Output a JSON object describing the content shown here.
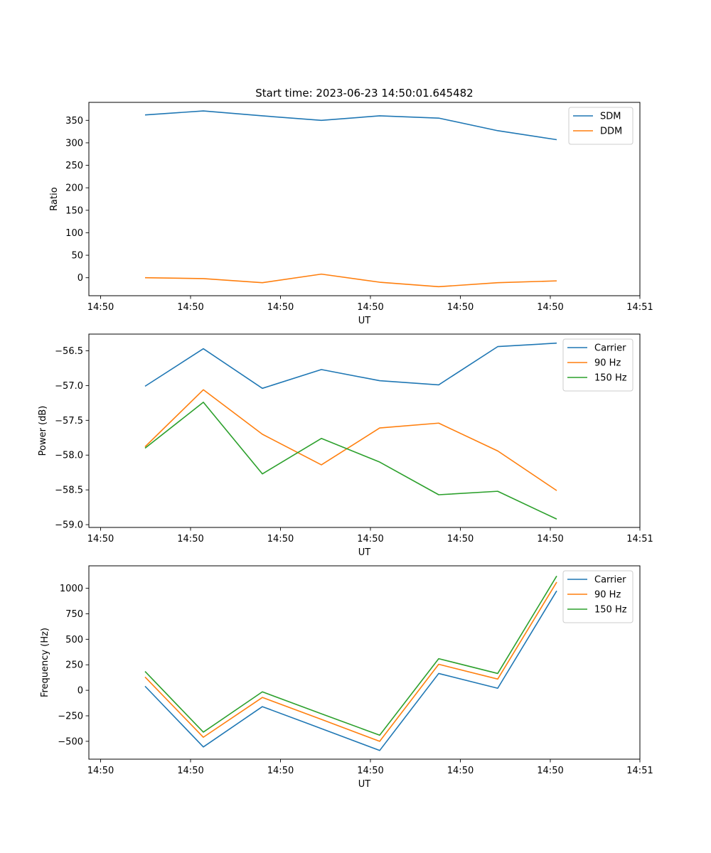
{
  "figure_title": "Start time: 2023-06-23 14:50:01.645482",
  "colors": {
    "c0": "#1f77b4",
    "c1": "#ff7f0e",
    "c2": "#2ca02c"
  },
  "chart_data": [
    {
      "type": "line",
      "title": "Start time: 2023-06-23 14:50:01.645482",
      "xlabel": "UT",
      "ylabel": "Ratio",
      "x_ticks": [
        "14:50",
        "14:50",
        "14:50",
        "14:50",
        "14:50",
        "14:50",
        "14:51"
      ],
      "y_ticks": [
        "0",
        "50",
        "100",
        "150",
        "200",
        "250",
        "300",
        "350"
      ],
      "ylim": [
        -40,
        390
      ],
      "legend_position": "top-right",
      "series": [
        {
          "name": "SDM",
          "color": "#1f77b4",
          "values": [
            362,
            371,
            360,
            350,
            360,
            355,
            327,
            307
          ]
        },
        {
          "name": "DDM",
          "color": "#ff7f0e",
          "values": [
            0,
            -2,
            -11,
            8,
            -10,
            -20,
            -11,
            -7
          ]
        }
      ]
    },
    {
      "type": "line",
      "xlabel": "UT",
      "ylabel": "Power (dB)",
      "x_ticks": [
        "14:50",
        "14:50",
        "14:50",
        "14:50",
        "14:50",
        "14:50",
        "14:51"
      ],
      "y_ticks": [
        "−59.0",
        "−58.5",
        "−58.0",
        "−57.5",
        "−57.0",
        "−56.5"
      ],
      "ylim": [
        -59.04,
        -56.26
      ],
      "legend_position": "top-right",
      "series": [
        {
          "name": "Carrier",
          "color": "#1f77b4",
          "values": [
            -57.01,
            -56.47,
            -57.04,
            -56.77,
            -56.93,
            -56.99,
            -56.44,
            -56.39
          ]
        },
        {
          "name": "90 Hz",
          "color": "#ff7f0e",
          "values": [
            -57.88,
            -57.06,
            -57.7,
            -58.14,
            -57.61,
            -57.54,
            -57.94,
            -58.51
          ]
        },
        {
          "name": "150 Hz",
          "color": "#2ca02c",
          "values": [
            -57.9,
            -57.24,
            -58.27,
            -57.76,
            -58.1,
            -58.57,
            -58.52,
            -58.92
          ]
        }
      ]
    },
    {
      "type": "line",
      "xlabel": "UT",
      "ylabel": "Frequency (Hz)",
      "x_ticks": [
        "14:50",
        "14:50",
        "14:50",
        "14:50",
        "14:50",
        "14:50",
        "14:51"
      ],
      "y_ticks": [
        "−500",
        "−250",
        "0",
        "250",
        "500",
        "750",
        "1000"
      ],
      "ylim": [
        -675,
        1220
      ],
      "legend_position": "top-right",
      "series": [
        {
          "name": "Carrier",
          "color": "#1f77b4",
          "values": [
            40,
            -555,
            -160,
            -375,
            -590,
            165,
            20,
            975
          ]
        },
        {
          "name": "90 Hz",
          "color": "#ff7f0e",
          "values": [
            130,
            -460,
            -70,
            -285,
            -500,
            255,
            110,
            1060
          ]
        },
        {
          "name": "150 Hz",
          "color": "#2ca02c",
          "values": [
            185,
            -410,
            -15,
            -230,
            -440,
            310,
            165,
            1120
          ]
        }
      ]
    }
  ]
}
